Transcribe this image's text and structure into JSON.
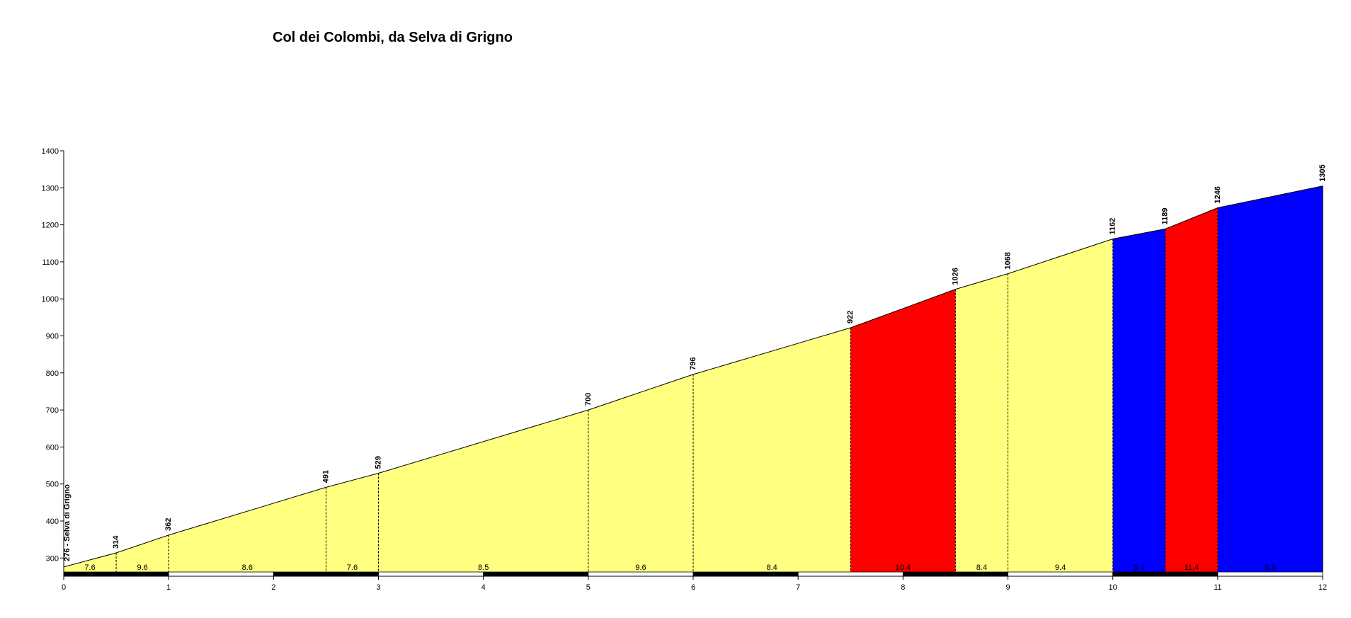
{
  "chart_data": {
    "type": "area",
    "title": "Col dei Colombi, da Selva di Grigno",
    "xlabel": "",
    "ylabel": "",
    "xlim": [
      0,
      12
    ],
    "ylim": [
      250,
      1400
    ],
    "x_ticks": [
      0,
      1,
      2,
      3,
      4,
      5,
      6,
      7,
      8,
      9,
      10,
      11,
      12
    ],
    "y_ticks": [
      300,
      400,
      500,
      600,
      700,
      800,
      900,
      1000,
      1100,
      1200,
      1300,
      1400
    ],
    "start_label": "276 - Selva di Grigno",
    "points": [
      {
        "x": 0,
        "y": 276
      },
      {
        "x": 0.5,
        "y": 314
      },
      {
        "x": 1,
        "y": 362
      },
      {
        "x": 2.5,
        "y": 491
      },
      {
        "x": 3,
        "y": 529
      },
      {
        "x": 5,
        "y": 700
      },
      {
        "x": 6,
        "y": 796
      },
      {
        "x": 7.5,
        "y": 922
      },
      {
        "x": 8.5,
        "y": 1026
      },
      {
        "x": 9,
        "y": 1068
      },
      {
        "x": 10,
        "y": 1162
      },
      {
        "x": 10.5,
        "y": 1189
      },
      {
        "x": 11,
        "y": 1246
      },
      {
        "x": 12,
        "y": 1305
      }
    ],
    "segments": [
      {
        "from": 0,
        "to": 0.5,
        "gradient": "7.6",
        "color": "#ffff80"
      },
      {
        "from": 0.5,
        "to": 1,
        "gradient": "9.6",
        "color": "#ffff80"
      },
      {
        "from": 1,
        "to": 2.5,
        "gradient": "8.6",
        "color": "#ffff80"
      },
      {
        "from": 2.5,
        "to": 3,
        "gradient": "7.6",
        "color": "#ffff80"
      },
      {
        "from": 3,
        "to": 5,
        "gradient": "8.5",
        "color": "#ffff80"
      },
      {
        "from": 5,
        "to": 6,
        "gradient": "9.6",
        "color": "#ffff80"
      },
      {
        "from": 6,
        "to": 7.5,
        "gradient": "8.4",
        "color": "#ffff80"
      },
      {
        "from": 7.5,
        "to": 8.5,
        "gradient": "10.4",
        "color": "#ff0000"
      },
      {
        "from": 8.5,
        "to": 9,
        "gradient": "8.4",
        "color": "#ffff80"
      },
      {
        "from": 9,
        "to": 10,
        "gradient": "9.4",
        "color": "#ffff80"
      },
      {
        "from": 10,
        "to": 10.5,
        "gradient": "5.4",
        "color": "#0000ff"
      },
      {
        "from": 10.5,
        "to": 11,
        "gradient": "11.4",
        "color": "#ff0000"
      },
      {
        "from": 11,
        "to": 12,
        "gradient": "5.9",
        "color": "#0000ff"
      }
    ],
    "grid": false,
    "legend": "none"
  }
}
